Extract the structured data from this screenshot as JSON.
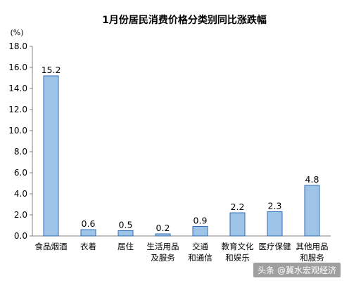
{
  "chart_data": {
    "type": "bar",
    "title": "1月份居民消费价格分类别同比涨跌幅",
    "unit_label": "(%)",
    "ylabel": "",
    "xlabel": "",
    "ylim": [
      0,
      18
    ],
    "yticks": [
      "0.0",
      "2.0",
      "4.0",
      "6.0",
      "8.0",
      "10.0",
      "12.0",
      "14.0",
      "16.0",
      "18.0"
    ],
    "categories": [
      [
        "食品烟酒"
      ],
      [
        "衣着"
      ],
      [
        "居住"
      ],
      [
        "生活用品",
        "及服务"
      ],
      [
        "交通",
        "和通信"
      ],
      [
        "教育文化",
        "和娱乐"
      ],
      [
        "医疗保健"
      ],
      [
        "其他用品",
        "和服务"
      ]
    ],
    "values": [
      15.2,
      0.6,
      0.5,
      0.2,
      0.9,
      2.2,
      2.3,
      4.8
    ],
    "value_labels": [
      "15.2",
      "0.6",
      "0.5",
      "0.2",
      "0.9",
      "2.2",
      "2.3",
      "4.8"
    ],
    "bar_color": "#9DC3E6",
    "bar_stroke": "#2F6EB5",
    "grid": false
  },
  "watermark": "头条 @冀水宏观经济"
}
